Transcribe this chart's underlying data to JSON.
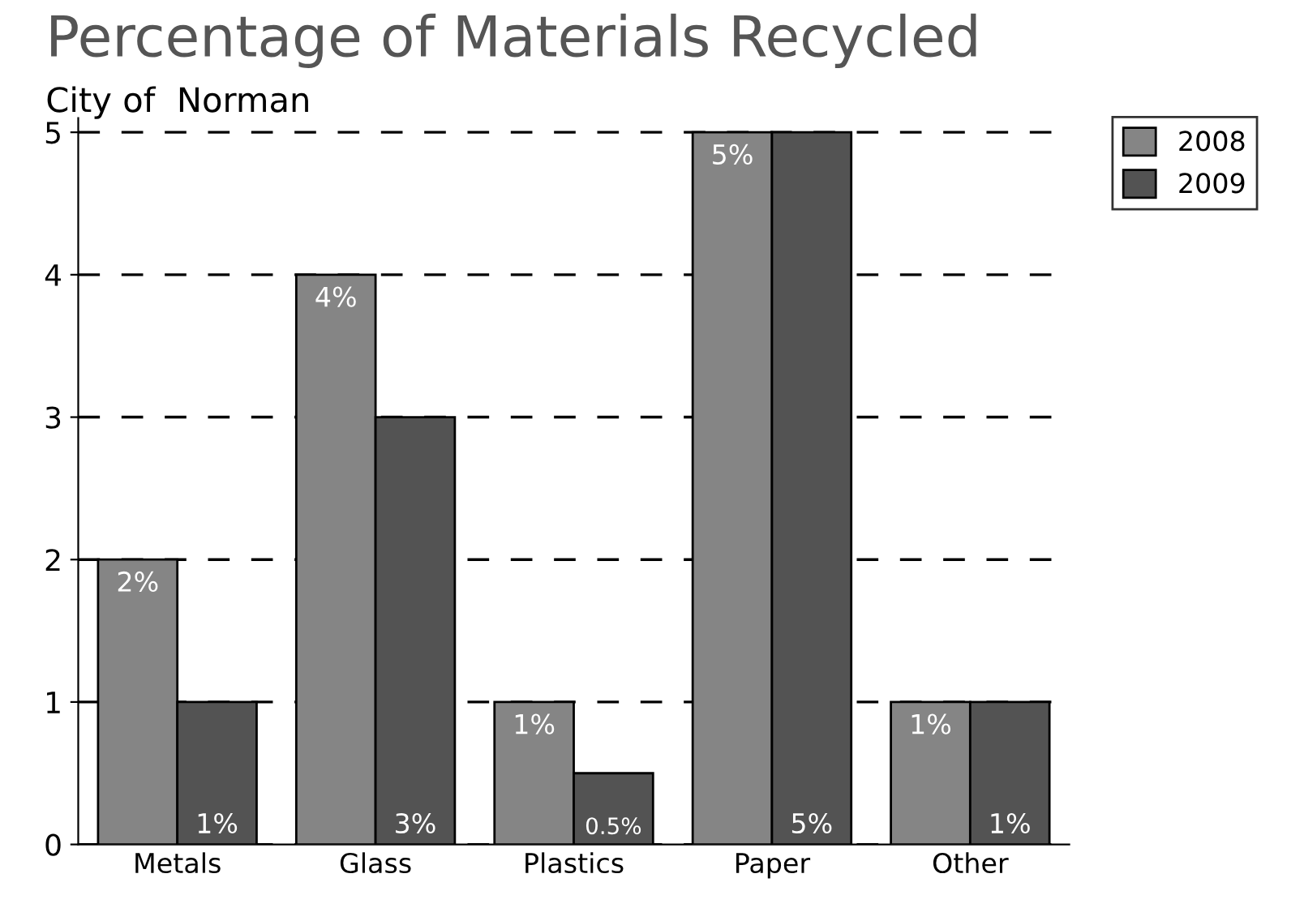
{
  "chart_data": {
    "type": "bar",
    "title": "Percentage of Materials Recycled",
    "subtitle": "City of  Norman",
    "categories": [
      "Metals",
      "Glass",
      "Plastics",
      "Paper",
      "Other"
    ],
    "series": [
      {
        "name": "2008",
        "color": "#858585",
        "values": [
          2,
          4,
          1,
          5,
          1
        ],
        "value_labels": [
          "2%",
          "4%",
          "1%",
          "5%",
          "1%"
        ]
      },
      {
        "name": "2009",
        "color": "#535353",
        "values": [
          1,
          3,
          0.5,
          5,
          1
        ],
        "value_labels": [
          "1%",
          "3%",
          "0.5%",
          "5%",
          "1%"
        ]
      }
    ],
    "ylim": [
      0,
      5.1
    ],
    "yticks": [
      0,
      1,
      2,
      3,
      4,
      5
    ],
    "grid": "y",
    "line_style": "dashed",
    "legend": "top right"
  }
}
